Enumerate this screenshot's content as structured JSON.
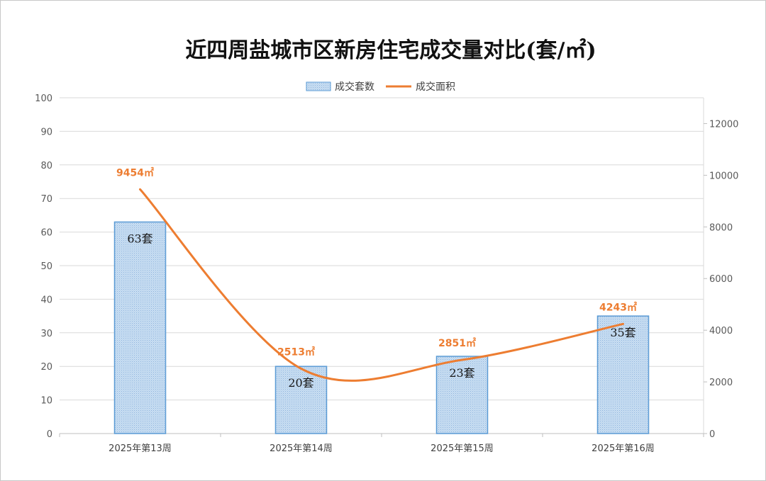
{
  "chart_data": {
    "type": "bar",
    "title": "近四周盐城市区新房住宅成交量对比(套/㎡)",
    "categories": [
      "2025年第13周",
      "2025年第14周",
      "2025年第15周",
      "2025年第16周"
    ],
    "series": [
      {
        "name": "成交套数",
        "type": "bar",
        "axis": "left",
        "values": [
          63,
          20,
          23,
          35
        ],
        "labels": [
          "63套",
          "20套",
          "23套",
          "35套"
        ]
      },
      {
        "name": "成交面积",
        "type": "line",
        "axis": "right",
        "smooth": true,
        "values": [
          9454,
          2513,
          2851,
          4243
        ],
        "labels": [
          "9454㎡",
          "2513㎡",
          "2851㎡",
          "4243㎡"
        ]
      }
    ],
    "y_left": {
      "min": 0,
      "max": 100,
      "ticks": [
        "0",
        "10",
        "20",
        "30",
        "40",
        "50",
        "60",
        "70",
        "80",
        "90",
        "100"
      ]
    },
    "y_right": {
      "min": 0,
      "max": 13000,
      "ticks": [
        "0",
        "2000",
        "4000",
        "6000",
        "8000",
        "10000",
        "12000"
      ]
    },
    "grid": true,
    "legend": "top-center",
    "colors": {
      "bar_fill": "#bdd7ee",
      "bar_stroke": "#5b9bd5",
      "line": "#ed7d31",
      "grid": "#d9d9d9"
    }
  }
}
